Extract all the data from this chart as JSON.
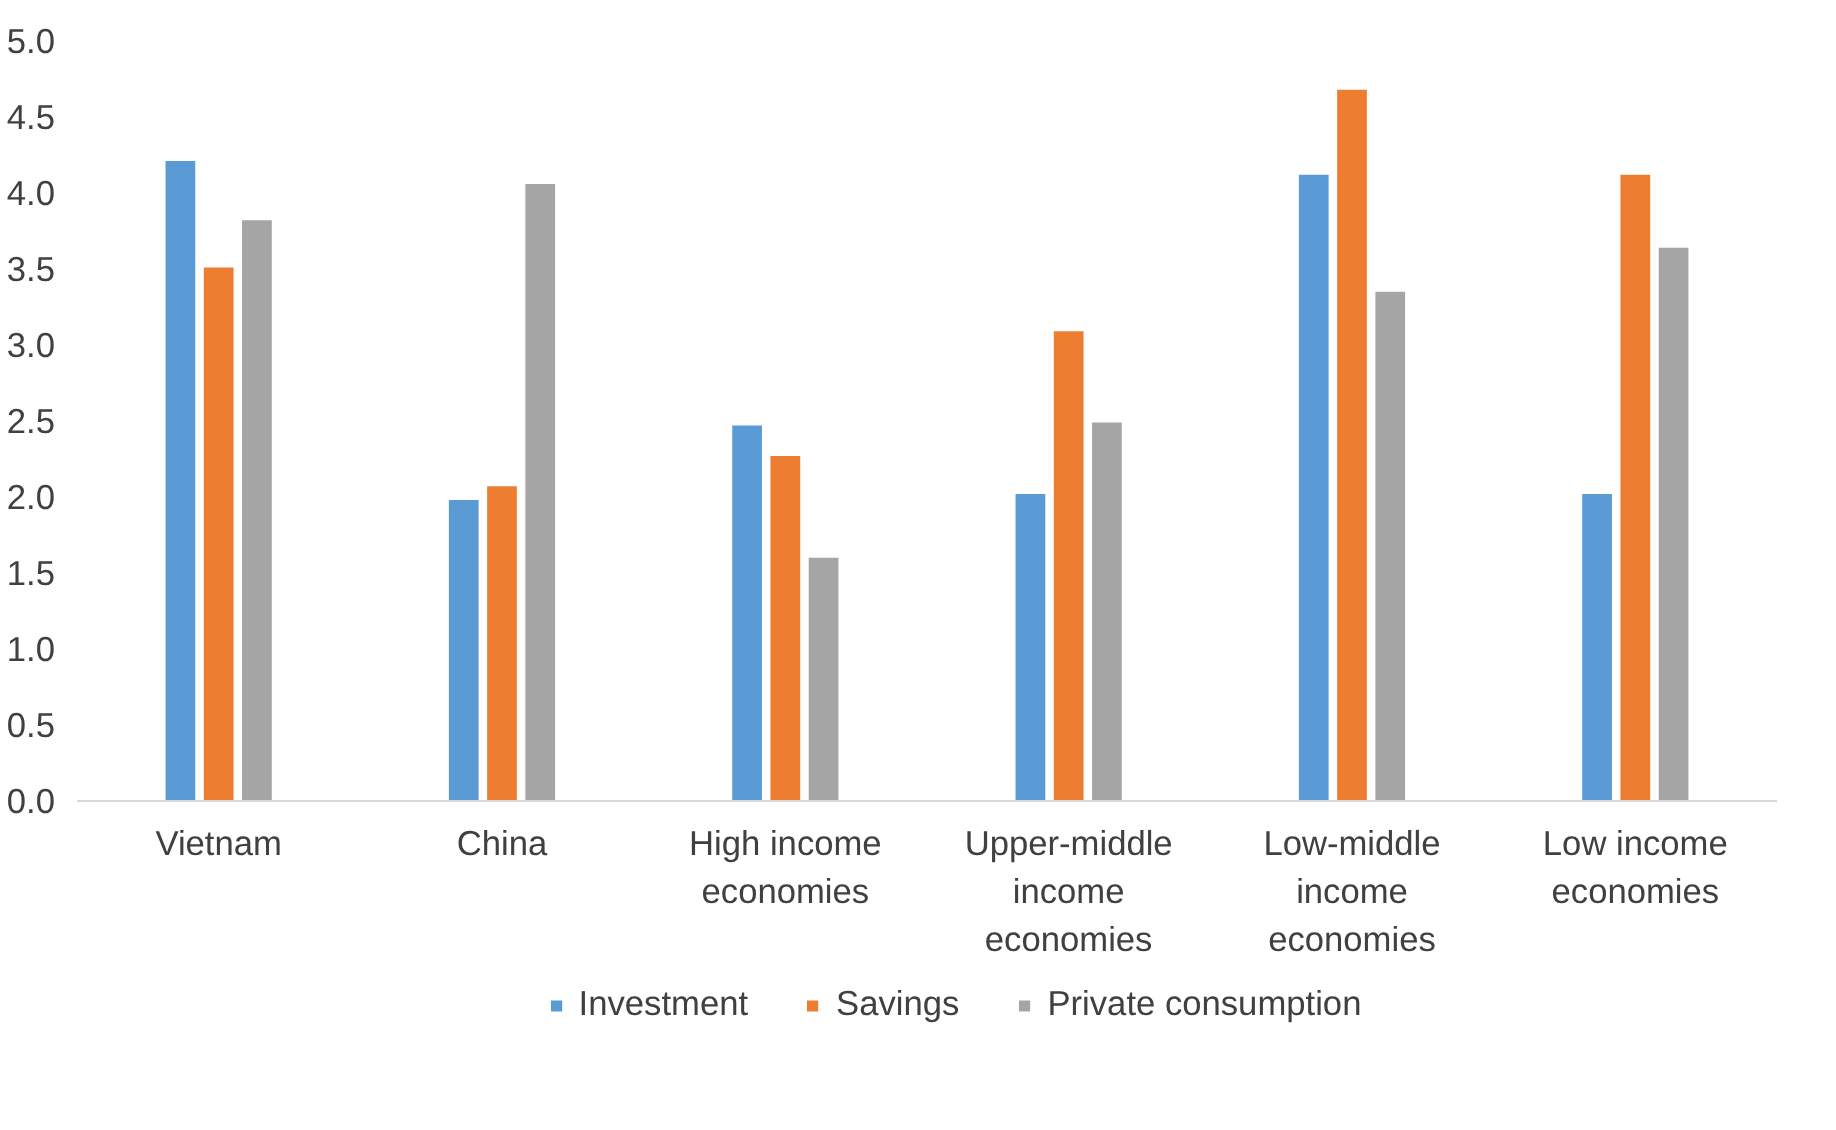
{
  "chart_data": {
    "type": "bar",
    "categories": [
      "Vietnam",
      "China",
      "High income economies",
      "Upper-middle income economies",
      "Low-middle income economies",
      "Low income economies"
    ],
    "series": [
      {
        "name": "Investment",
        "color": "#5b9bd5",
        "values": [
          4.21,
          1.98,
          2.47,
          2.02,
          4.12,
          2.02
        ]
      },
      {
        "name": "Savings",
        "color": "#ed7d31",
        "values": [
          3.51,
          2.07,
          2.27,
          3.09,
          4.68,
          4.12
        ]
      },
      {
        "name": "Private consumption",
        "color": "#a5a5a5",
        "values": [
          3.82,
          4.06,
          1.6,
          2.49,
          3.35,
          3.64
        ]
      }
    ],
    "ylim": [
      0,
      5
    ],
    "yticks": [
      {
        "value": 0,
        "label": "0.0"
      },
      0.5,
      {
        "value": 1,
        "label": "1.0"
      },
      1.5,
      {
        "value": 2,
        "label": "2.0"
      },
      2.5,
      {
        "value": 3,
        "label": "3.0"
      },
      3.5,
      {
        "value": 4,
        "label": "4.0"
      },
      4.5,
      {
        "value": 5,
        "label": "5.0"
      }
    ],
    "grid": false,
    "legend": "bottom"
  }
}
